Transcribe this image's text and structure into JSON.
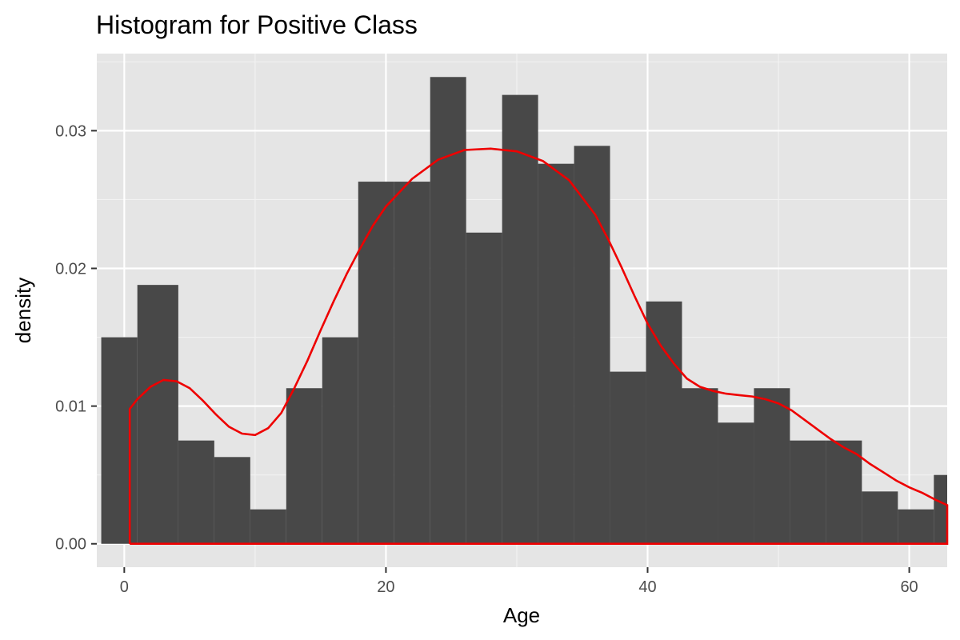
{
  "chart_data": {
    "type": "bar",
    "title": "Histogram for Positive Class",
    "xlabel": "Age",
    "ylabel": "density",
    "xlim": [
      -2.1,
      62.9
    ],
    "ylim": [
      -0.0017,
      0.0356
    ],
    "x_ticks": [
      0,
      20,
      40,
      60
    ],
    "x_tick_labels": [
      "0",
      "20",
      "40",
      "60"
    ],
    "y_ticks": [
      0.0,
      0.01,
      0.02,
      0.03
    ],
    "y_tick_labels": [
      "0.00",
      "0.01",
      "0.02",
      "0.03"
    ],
    "grid": true,
    "panel_background": "#e5e5e5",
    "bar_color": "#484848",
    "density_color": "#ee0000",
    "bins": [
      {
        "x0": -1.76,
        "x1": 1.0,
        "density": 0.015
      },
      {
        "x0": 1.0,
        "x1": 4.13,
        "density": 0.0188
      },
      {
        "x0": 4.13,
        "x1": 6.88,
        "density": 0.0075
      },
      {
        "x0": 6.88,
        "x1": 9.63,
        "density": 0.0063
      },
      {
        "x0": 9.63,
        "x1": 12.38,
        "density": 0.0025
      },
      {
        "x0": 12.38,
        "x1": 15.13,
        "density": 0.0113
      },
      {
        "x0": 15.13,
        "x1": 17.88,
        "density": 0.015
      },
      {
        "x0": 17.88,
        "x1": 20.63,
        "density": 0.0263
      },
      {
        "x0": 20.63,
        "x1": 23.38,
        "density": 0.0263
      },
      {
        "x0": 23.38,
        "x1": 26.13,
        "density": 0.0339
      },
      {
        "x0": 26.13,
        "x1": 28.88,
        "density": 0.0226
      },
      {
        "x0": 28.88,
        "x1": 31.63,
        "density": 0.0326
      },
      {
        "x0": 31.63,
        "x1": 34.38,
        "density": 0.0276
      },
      {
        "x0": 34.38,
        "x1": 37.13,
        "density": 0.0289
      },
      {
        "x0": 37.13,
        "x1": 39.88,
        "density": 0.0125
      },
      {
        "x0": 39.88,
        "x1": 42.63,
        "density": 0.0176
      },
      {
        "x0": 42.63,
        "x1": 45.38,
        "density": 0.0113
      },
      {
        "x0": 45.38,
        "x1": 48.13,
        "density": 0.0088
      },
      {
        "x0": 48.13,
        "x1": 50.88,
        "density": 0.0113
      },
      {
        "x0": 50.88,
        "x1": 53.63,
        "density": 0.0075
      },
      {
        "x0": 53.63,
        "x1": 56.38,
        "density": 0.0075
      },
      {
        "x0": 56.38,
        "x1": 59.13,
        "density": 0.0038
      },
      {
        "x0": 59.13,
        "x1": 61.88,
        "density": 0.0025
      },
      {
        "x0": 61.88,
        "x1": 64.63,
        "density": 0.005
      }
    ],
    "density_curve": {
      "x": [
        0.42,
        0.42,
        1.0,
        2.0,
        3.0,
        4.0,
        5.0,
        6.0,
        7.0,
        8.0,
        9.0,
        10.0,
        11.0,
        12.0,
        13.0,
        14.0,
        15.0,
        16.0,
        17.0,
        18.0,
        19.0,
        20.0,
        22.0,
        24.0,
        26.0,
        28.0,
        30.0,
        32.0,
        34.0,
        36.0,
        37.0,
        38.0,
        39.0,
        40.0,
        41.0,
        42.0,
        43.0,
        44.0,
        45.0,
        46.0,
        47.0,
        48.0,
        49.0,
        50.0,
        51.0,
        52.0,
        53.0,
        54.0,
        55.0,
        56.0,
        57.0,
        58.0,
        59.0,
        60.0,
        61.0,
        62.0,
        62.9,
        62.9,
        0.42
      ],
      "y": [
        0.0,
        0.0098,
        0.0105,
        0.0114,
        0.0119,
        0.0118,
        0.0113,
        0.0104,
        0.0094,
        0.0085,
        0.008,
        0.0079,
        0.0084,
        0.0095,
        0.0113,
        0.0133,
        0.0155,
        0.0176,
        0.0196,
        0.0214,
        0.0231,
        0.0245,
        0.0265,
        0.0279,
        0.0286,
        0.0287,
        0.0285,
        0.0278,
        0.0264,
        0.0239,
        0.0221,
        0.0201,
        0.018,
        0.016,
        0.0144,
        0.0131,
        0.012,
        0.0114,
        0.0111,
        0.0109,
        0.0108,
        0.0107,
        0.0105,
        0.0102,
        0.0097,
        0.009,
        0.0083,
        0.0076,
        0.007,
        0.0065,
        0.0058,
        0.0052,
        0.0046,
        0.0041,
        0.0037,
        0.0032,
        0.0028,
        0.0,
        0.0
      ]
    }
  }
}
